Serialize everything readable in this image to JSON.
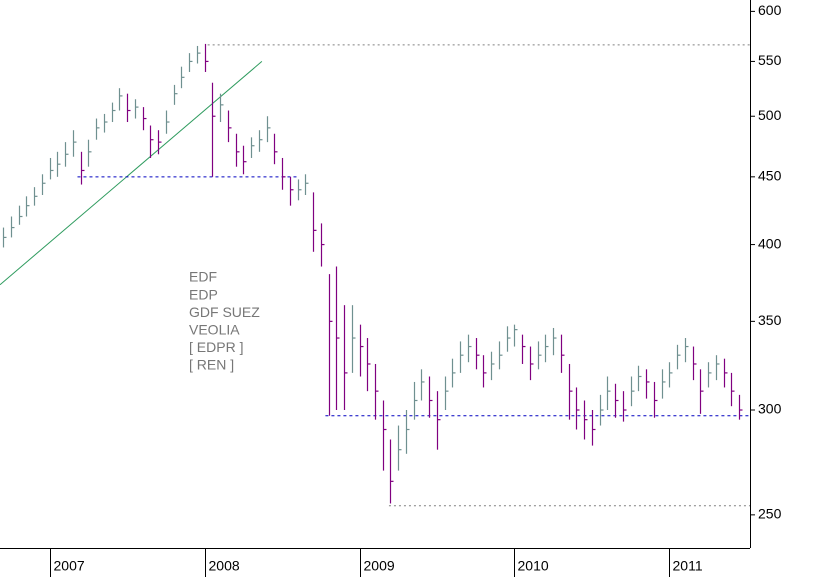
{
  "chart_data": {
    "type": "ohlc",
    "annotations": [
      "EDF",
      "EDP",
      "GDF SUEZ",
      "VEOLIA",
      "[ EDPR ]",
      "[ REN ]"
    ],
    "x": [
      2006.7,
      2006.75,
      2006.8,
      2006.85,
      2006.9,
      2006.95,
      2007.0,
      2007.05,
      2007.1,
      2007.15,
      2007.2,
      2007.25,
      2007.3,
      2007.35,
      2007.4,
      2007.45,
      2007.5,
      2007.55,
      2007.6,
      2007.65,
      2007.7,
      2007.75,
      2007.8,
      2007.85,
      2007.9,
      2007.95,
      2008.0,
      2008.05,
      2008.1,
      2008.15,
      2008.2,
      2008.25,
      2008.3,
      2008.35,
      2008.4,
      2008.45,
      2008.5,
      2008.55,
      2008.6,
      2008.65,
      2008.7,
      2008.75,
      2008.8,
      2008.85,
      2008.9,
      2008.95,
      2009.0,
      2009.05,
      2009.1,
      2009.15,
      2009.2,
      2009.25,
      2009.3,
      2009.35,
      2009.4,
      2009.45,
      2009.5,
      2009.55,
      2009.6,
      2009.65,
      2009.7,
      2009.75,
      2009.8,
      2009.85,
      2009.9,
      2009.95,
      2010.0,
      2010.05,
      2010.1,
      2010.15,
      2010.2,
      2010.25,
      2010.3,
      2010.35,
      2010.4,
      2010.45,
      2010.5,
      2010.55,
      2010.6,
      2010.65,
      2010.7,
      2010.75,
      2010.8,
      2010.85,
      2010.9,
      2010.95,
      2011.0,
      2011.05,
      2011.1,
      2011.15,
      2011.2,
      2011.25,
      2011.3,
      2011.35,
      2011.4,
      2011.45
    ],
    "high": [
      412,
      420,
      428,
      435,
      442,
      452,
      465,
      470,
      478,
      488,
      470,
      480,
      498,
      502,
      512,
      525,
      520,
      515,
      508,
      492,
      488,
      505,
      528,
      545,
      558,
      565,
      567,
      530,
      520,
      505,
      485,
      475,
      482,
      488,
      500,
      485,
      465,
      450,
      448,
      452,
      438,
      415,
      380,
      385,
      360,
      360,
      348,
      340,
      325,
      305,
      285,
      292,
      300,
      315,
      322,
      318,
      310,
      318,
      328,
      338,
      342,
      340,
      330,
      332,
      338,
      347,
      348,
      342,
      335,
      338,
      342,
      346,
      342,
      325,
      312,
      305,
      300,
      308,
      318,
      314,
      310,
      318,
      324,
      322,
      315,
      322,
      326,
      336,
      340,
      335,
      322,
      326,
      330,
      328,
      320,
      308
    ],
    "low": [
      398,
      405,
      414,
      420,
      428,
      436,
      448,
      450,
      458,
      466,
      444,
      458,
      480,
      486,
      495,
      505,
      495,
      498,
      488,
      465,
      468,
      485,
      510,
      525,
      540,
      548,
      540,
      450,
      495,
      478,
      458,
      452,
      465,
      470,
      478,
      460,
      440,
      428,
      432,
      436,
      395,
      385,
      297,
      300,
      300,
      320,
      318,
      310,
      295,
      270,
      255,
      270,
      278,
      295,
      305,
      296,
      280,
      300,
      312,
      320,
      326,
      322,
      312,
      316,
      322,
      332,
      335,
      325,
      316,
      322,
      326,
      330,
      320,
      295,
      290,
      285,
      282,
      292,
      300,
      296,
      294,
      302,
      310,
      306,
      296,
      306,
      312,
      322,
      326,
      316,
      298,
      312,
      316,
      312,
      302,
      295
    ],
    "close": [
      405,
      412,
      420,
      428,
      435,
      445,
      455,
      460,
      468,
      478,
      455,
      470,
      490,
      495,
      505,
      518,
      505,
      508,
      498,
      480,
      478,
      495,
      520,
      535,
      550,
      558,
      550,
      500,
      510,
      490,
      470,
      462,
      475,
      480,
      490,
      470,
      450,
      440,
      440,
      445,
      410,
      400,
      350,
      340,
      320,
      340,
      335,
      325,
      310,
      290,
      265,
      280,
      290,
      305,
      315,
      305,
      295,
      310,
      320,
      330,
      335,
      330,
      320,
      325,
      330,
      340,
      345,
      335,
      325,
      330,
      335,
      340,
      330,
      310,
      300,
      295,
      290,
      300,
      310,
      305,
      300,
      310,
      318,
      315,
      305,
      315,
      320,
      330,
      335,
      325,
      310,
      320,
      325,
      320,
      310,
      300
    ],
    "up_color": "#6f9090",
    "down_color": "#800080",
    "lines": [
      {
        "color": "#2e9b5e",
        "dash": "none",
        "x": [
          2006.68,
          2008.37
        ],
        "y": [
          373,
          550
        ]
      },
      {
        "color": "#0000c0",
        "dash": "3,3",
        "x": [
          2007.18,
          2008.61
        ],
        "y": [
          450,
          450
        ]
      },
      {
        "color": "#0000c0",
        "dash": "3,3",
        "x": [
          2008.78,
          2011.52
        ],
        "y": [
          297,
          297
        ]
      },
      {
        "color": "#808080",
        "dash": "2,3",
        "x": [
          2008.02,
          2011.52
        ],
        "y": [
          566,
          566
        ]
      },
      {
        "color": "#808080",
        "dash": "2,3",
        "x": [
          2009.19,
          2011.52
        ],
        "y": [
          254,
          254
        ]
      }
    ],
    "log_scale": true,
    "xlim": [
      2006.68,
      2011.52
    ],
    "xticks": [
      2007,
      2008,
      2009,
      2010,
      2011
    ],
    "ylim": [
      236,
      612
    ],
    "yticks": [
      250,
      300,
      350,
      400,
      450,
      500,
      550,
      600
    ]
  }
}
